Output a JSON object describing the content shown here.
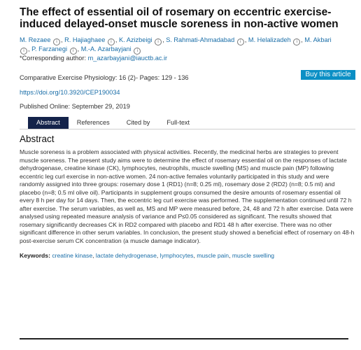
{
  "article": {
    "title": "The effect of essential oil of rosemary on eccentric exercise-induced delayed-onset muscle soreness in non-active women",
    "authors": [
      "M. Rezaee",
      "R. Hajiaghaee",
      "K. Azizbeigi",
      "S. Rahmati-Ahmadabad",
      "M. Helalizadeh",
      "M. Akbari",
      "P. Farzanegi",
      "M.-A. Azarbayjani"
    ],
    "corresponding_label": "*Corresponding author: ",
    "corresponding_email": "m_azarbayjani@iauctb.ac.ir",
    "journal": "Comparative Exercise Physiology: 16 (2)- Pages: 129 - 136",
    "buy_label": "Buy this article",
    "doi": "https://doi.org/10.3920/CEP190034",
    "published": "Published Online: September 29, 2019"
  },
  "tabs": [
    "Abstract",
    "References",
    "Cited by",
    "Full-text"
  ],
  "abstract": {
    "heading": "Abstract",
    "text": "Muscle soreness is a problem associated with physical activities. Recently, the medicinal herbs are strategies to prevent muscle soreness. The present study aims were to determine the effect of rosemary essential oil on the responses of lactate dehydrogenase, creatine kinase (CK), lymphocytes, neutrophils, muscle swelling (MS) and muscle pain (MP) following eccentric leg curl exercise in non-active women. 24 non-active females voluntarily participated in this study and were randomly assigned into three groups: rosemary dose 1 (RD1) (n=8; 0.25 ml), rosemary dose 2 (RD2) (n=8; 0.5 ml) and placebo (n=8; 0.5 ml olive oil). Participants in supplement groups consumed the desire amounts of rosemary essential oil every 8 h per day for 14 days. Then, the eccentric leg curl exercise was performed. The supplementation continued until 72 h after exercise. The serum variables, as well as, MS and MP were measured before, 24, 48 and 72 h after exercise. Data were analysed using repeated measure analysis of variance and P≤0.05 considered as significant. The results showed that rosemary significantly decreases CK in RD2 compared with placebo and RD1 48 h after exercise. There was no other significant difference in other serum variables. In conclusion, the present study showed a beneficial effect of rosemary on 48-h post-exercise serum CK concentration (a muscle damage indicator)."
  },
  "keywords": {
    "label": "Keywords:",
    "items": [
      "creatine kinase",
      "lactate dehydrogenase",
      "lymphocytes",
      "muscle pain",
      "muscle swelling"
    ]
  },
  "icons": {
    "orcid": "orcid-icon",
    "orcid_glyph": "i"
  }
}
